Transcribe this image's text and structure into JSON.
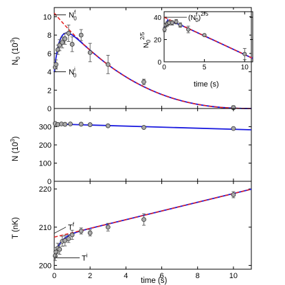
{
  "chart_data": [
    {
      "type": "scatter",
      "panel": "top",
      "ylabel_main": "N",
      "ylabel_sub": "0",
      "ylabel_unit": " (10",
      "ylabel_exp": "3",
      "ylabel_close": ")",
      "xlim": [
        0,
        11
      ],
      "ylim": [
        0,
        11
      ],
      "yticks": [
        0,
        2,
        4,
        6,
        8,
        10
      ],
      "points": [
        {
          "x": 0.05,
          "y": 4.5,
          "err": 0.5
        },
        {
          "x": 0.1,
          "y": 4.8,
          "err": 0.5
        },
        {
          "x": 0.2,
          "y": 6.4,
          "err": 0.5
        },
        {
          "x": 0.3,
          "y": 6.9,
          "err": 0.6
        },
        {
          "x": 0.45,
          "y": 7.2,
          "err": 0.6
        },
        {
          "x": 0.6,
          "y": 7.6,
          "err": 0.6
        },
        {
          "x": 0.8,
          "y": 8.2,
          "err": 0.9
        },
        {
          "x": 1.0,
          "y": 7.0,
          "err": 0.8
        },
        {
          "x": 1.5,
          "y": 8.0,
          "err": 0.6
        },
        {
          "x": 2.0,
          "y": 6.1,
          "err": 1.0
        },
        {
          "x": 3.0,
          "y": 4.8,
          "err": 1.0
        },
        {
          "x": 5.0,
          "y": 2.9,
          "err": 0.3
        },
        {
          "x": 10.0,
          "y": 0.1,
          "err": 0.2
        }
      ],
      "annotations": [
        {
          "main": "N",
          "sup": "f",
          "sub": "0",
          "y": 10.2
        },
        {
          "main": "N",
          "sup": "i",
          "sub": "0",
          "y": 4.0
        }
      ]
    },
    {
      "type": "scatter",
      "panel": "inset",
      "ylabel_main": "N",
      "ylabel_sub": "0",
      "ylabel_exp": "2/5",
      "xlabel": "time (s)",
      "xlim": [
        0,
        11
      ],
      "ylim": [
        0,
        45
      ],
      "xticks": [
        0,
        5,
        10
      ],
      "yticks": [
        0,
        20,
        40
      ],
      "points": [
        {
          "x": 0.05,
          "y": 29,
          "err": 2
        },
        {
          "x": 0.2,
          "y": 33,
          "err": 2
        },
        {
          "x": 0.4,
          "y": 34,
          "err": 2
        },
        {
          "x": 0.6,
          "y": 35,
          "err": 2
        },
        {
          "x": 1.0,
          "y": 35,
          "err": 2
        },
        {
          "x": 1.5,
          "y": 36,
          "err": 2
        },
        {
          "x": 2.0,
          "y": 33,
          "err": 2
        },
        {
          "x": 3.0,
          "y": 29,
          "err": 3
        },
        {
          "x": 5.0,
          "y": 24,
          "err": 1
        },
        {
          "x": 10.0,
          "y": 7,
          "err": 5
        }
      ],
      "annotation": {
        "text": "(N",
        "sup": "f",
        "sub": "0",
        "close": ")",
        "exp": "2/5",
        "y": 40
      }
    },
    {
      "type": "scatter",
      "panel": "middle",
      "ylabel_main": "N",
      "ylabel_unit": " (10",
      "ylabel_exp": "3",
      "ylabel_close": ")",
      "xlim": [
        0,
        11
      ],
      "ylim": [
        0,
        400
      ],
      "yticks": [
        0,
        100,
        200,
        300
      ],
      "points": [
        {
          "x": 0.05,
          "y": 318
        },
        {
          "x": 0.2,
          "y": 312
        },
        {
          "x": 0.4,
          "y": 315
        },
        {
          "x": 0.6,
          "y": 313
        },
        {
          "x": 0.9,
          "y": 315
        },
        {
          "x": 1.5,
          "y": 314
        },
        {
          "x": 2.0,
          "y": 311
        },
        {
          "x": 3.0,
          "y": 305
        },
        {
          "x": 5.0,
          "y": 296
        },
        {
          "x": 10.0,
          "y": 290
        }
      ],
      "fit": [
        [
          0,
          315
        ],
        [
          11,
          283
        ]
      ]
    },
    {
      "type": "scatter",
      "panel": "bottom",
      "ylabel": "T (nK)",
      "xlabel": "time (s)",
      "xlim": [
        0,
        11
      ],
      "ylim": [
        199,
        222
      ],
      "xticks": [
        0,
        2,
        4,
        6,
        8,
        10
      ],
      "yticks": [
        200,
        210,
        220
      ],
      "points": [
        {
          "x": 0.05,
          "y": 202.5,
          "err": 1.2
        },
        {
          "x": 0.1,
          "y": 203.5,
          "err": 1.2
        },
        {
          "x": 0.2,
          "y": 204.5,
          "err": 1.3
        },
        {
          "x": 0.3,
          "y": 204.2,
          "err": 1.3
        },
        {
          "x": 0.45,
          "y": 206.3,
          "err": 1.3
        },
        {
          "x": 0.6,
          "y": 206.5,
          "err": 1.4
        },
        {
          "x": 0.8,
          "y": 207.0,
          "err": 1.0
        },
        {
          "x": 1.0,
          "y": 208.0,
          "err": 1.2
        },
        {
          "x": 1.5,
          "y": 209.0,
          "err": 0.8
        },
        {
          "x": 2.0,
          "y": 208.5,
          "err": 0.8
        },
        {
          "x": 3.0,
          "y": 210.0,
          "err": 1.0
        },
        {
          "x": 5.0,
          "y": 212.0,
          "err": 1.5
        },
        {
          "x": 10.0,
          "y": 218.5,
          "err": 0.8
        }
      ],
      "annotations": [
        {
          "main": "T",
          "sup": "f",
          "y": 208.4
        },
        {
          "main": "T",
          "sup": "i",
          "y": 202.0
        }
      ]
    }
  ]
}
